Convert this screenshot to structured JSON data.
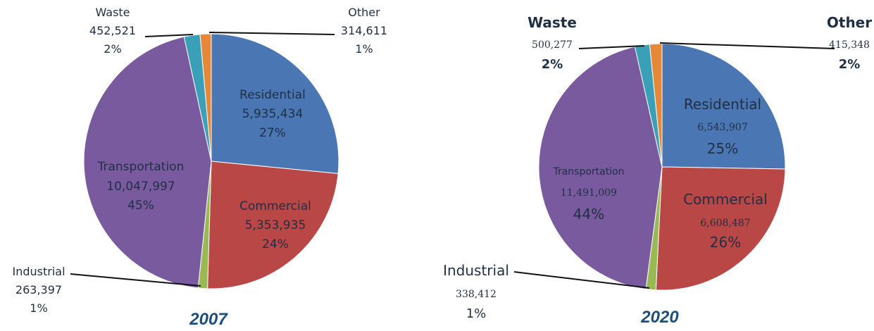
{
  "chart_data": [
    {
      "type": "pie",
      "title": "2007",
      "slices": [
        {
          "name": "Residential",
          "value": "5,935,434",
          "percent": "27%",
          "v": 5935434,
          "color": "#4a77b4"
        },
        {
          "name": "Commercial",
          "value": "5,353,935",
          "percent": "24%",
          "v": 5353935,
          "color": "#b84745"
        },
        {
          "name": "Industrial",
          "value": "263,397",
          "percent": "1%",
          "v": 263397,
          "color": "#98b954"
        },
        {
          "name": "Transportation",
          "value": "10,047,997",
          "percent": "45%",
          "v": 10047997,
          "color": "#7a5a9e"
        },
        {
          "name": "Waste",
          "value": "452,521",
          "percent": "2%",
          "v": 452521,
          "color": "#3aa0b8"
        },
        {
          "name": "Other",
          "value": "314,611",
          "percent": "1%",
          "v": 314611,
          "color": "#e6883a"
        }
      ]
    },
    {
      "type": "pie",
      "title": "2020",
      "slices": [
        {
          "name": "Residential",
          "value": "6,543,907",
          "percent": "25%",
          "v": 6543907,
          "color": "#4a77b4"
        },
        {
          "name": "Commercial",
          "value": "6,608,487",
          "percent": "26%",
          "v": 6608487,
          "color": "#b84745"
        },
        {
          "name": "Industrial",
          "value": "338,412",
          "percent": "1%",
          "v": 338412,
          "color": "#98b954"
        },
        {
          "name": "Transportation",
          "value": "11,491,009",
          "percent": "44%",
          "v": 11491009,
          "color": "#7a5a9e"
        },
        {
          "name": "Waste",
          "value": "500,277",
          "percent": "2%",
          "v": 500277,
          "color": "#3aa0b8"
        },
        {
          "name": "Other",
          "value": "415,348",
          "percent": "2%",
          "v": 415348,
          "color": "#e6883a"
        }
      ]
    }
  ]
}
